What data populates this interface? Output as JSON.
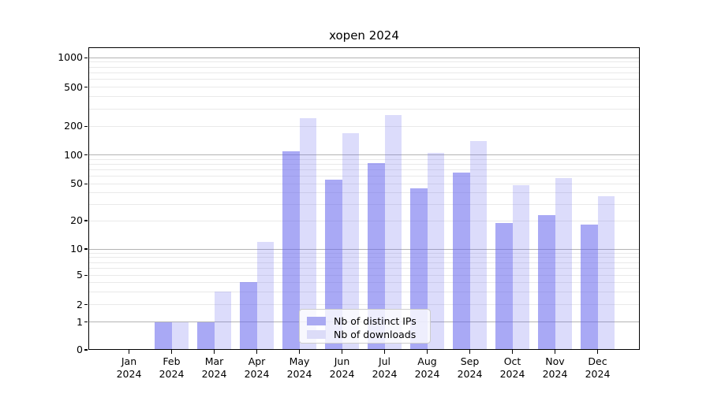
{
  "chart_data": {
    "type": "bar",
    "title": "xopen 2024",
    "categories": [
      "Jan",
      "Feb",
      "Mar",
      "Apr",
      "May",
      "Jun",
      "Jul",
      "Aug",
      "Sep",
      "Oct",
      "Nov",
      "Dec"
    ],
    "x_tick_year_line": "2024",
    "series": [
      {
        "name": "Nb of distinct IPs",
        "color": "rgba(102,102,238,0.56)",
        "swatch_hex": "#aaaaf2",
        "values": [
          0,
          1,
          1,
          4,
          110,
          55,
          83,
          45,
          65,
          19,
          23,
          18
        ]
      },
      {
        "name": "Nb of downloads",
        "color": "rgba(102,102,238,0.23)",
        "swatch_hex": "#dcdcf8",
        "values": [
          0,
          1,
          3,
          12,
          240,
          170,
          260,
          105,
          140,
          48,
          57,
          37
        ]
      }
    ],
    "xlabel": "",
    "ylabel": "",
    "yscale": "symlog",
    "yticks": [
      0,
      1,
      2,
      5,
      10,
      20,
      50,
      100,
      200,
      500,
      1000
    ],
    "ylim": [
      0,
      1300
    ],
    "grid": {
      "enabled": true,
      "major_color": "#b3b3b3",
      "minor_color": "#e9e9e9"
    },
    "legend": {
      "position": "lower center",
      "border_color": "#cccccc"
    }
  }
}
